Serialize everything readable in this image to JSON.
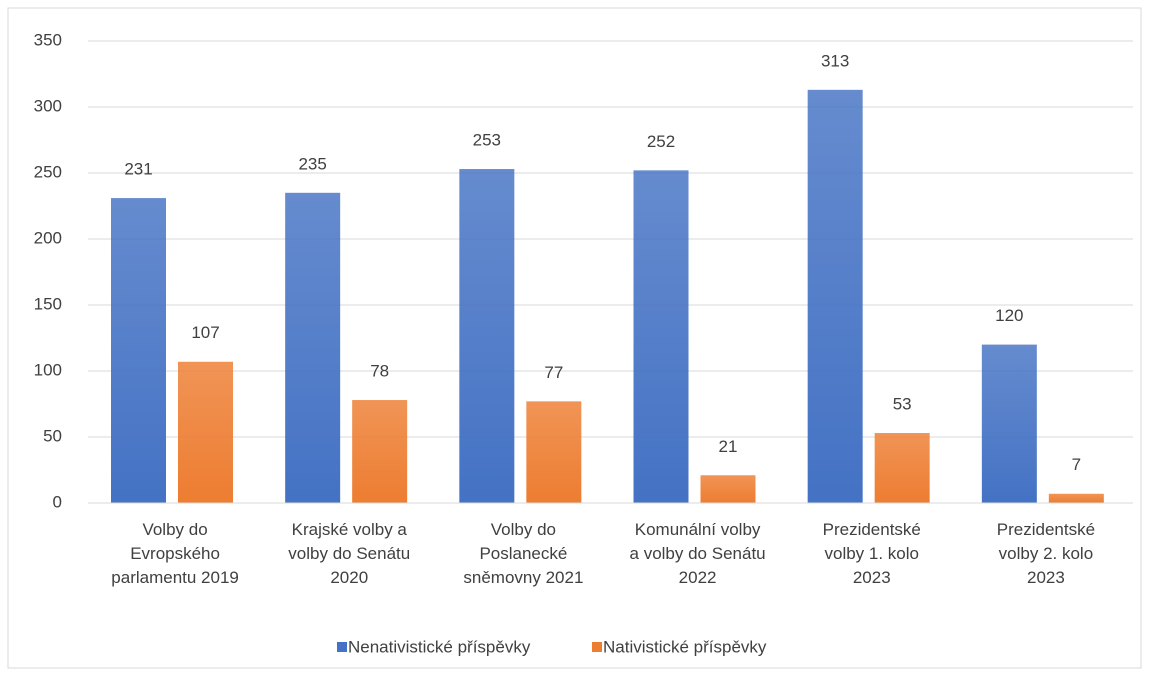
{
  "chart_data": {
    "type": "bar",
    "categories": [
      "Volby do\nEvropského\nparlamentu 2019",
      "Krajské volby a\nvolby do Senátu\n2020",
      "Volby do\nPoslanecké\nsněmovny 2021",
      "Komunální volby\na volby do Senátu\n2022",
      "Prezidentské\nvolby 1. kolo\n2023",
      "Prezidentské\nvolby 2. kolo\n2023"
    ],
    "series": [
      {
        "name": "Nenativistické příspěvky",
        "color": "#4472c4",
        "values": [
          231,
          235,
          253,
          252,
          313,
          120
        ]
      },
      {
        "name": "Nativistické příspěvky",
        "color": "#ed7d31",
        "values": [
          107,
          78,
          77,
          21,
          53,
          7
        ]
      }
    ],
    "ylim": [
      0,
      350
    ],
    "yticks": [
      0,
      50,
      100,
      150,
      200,
      250,
      300,
      350
    ],
    "grid": true,
    "legend": "bottom"
  }
}
